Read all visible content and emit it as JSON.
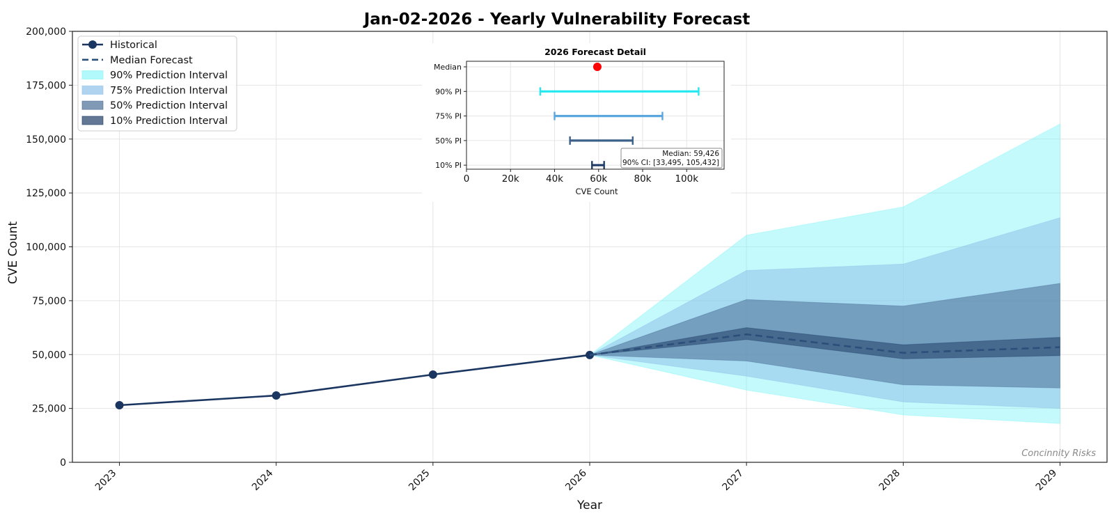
{
  "chart_data": {
    "type": "line",
    "title": "Jan-02-2026 - Yearly Vulnerability Forecast",
    "xlabel": "Year",
    "ylabel": "CVE Count",
    "ylim": [
      0,
      200000
    ],
    "xlim": [
      2022.7,
      2029.3
    ],
    "x": [
      "2023",
      "2024",
      "2025",
      "2026",
      "2027",
      "2028",
      "2029"
    ],
    "y_ticks": [
      "0",
      "25,000",
      "50,000",
      "75,000",
      "100,000",
      "125,000",
      "150,000",
      "175,000",
      "200,000"
    ],
    "grid": true,
    "legend_position": "top-left",
    "watermark": "Concinnity Risks",
    "series": [
      {
        "name": "Historical",
        "kind": "line-marker",
        "color": "#1a3560",
        "x": [
          2023,
          2024,
          2025,
          2026
        ],
        "y": [
          26500,
          31000,
          40700,
          49800
        ]
      },
      {
        "name": "Median Forecast",
        "kind": "dashed-line",
        "color": "#2b4f7a",
        "x": [
          2026,
          2027,
          2028,
          2029
        ],
        "y": [
          49800,
          59400,
          50800,
          53400
        ]
      }
    ],
    "intervals": [
      {
        "name": "90% Prediction Interval",
        "color": "#7df5f8",
        "opacity": 0.45,
        "x": [
          2026,
          2027,
          2028,
          2029
        ],
        "lower": [
          49800,
          33500,
          22000,
          18000
        ],
        "upper": [
          49800,
          105400,
          118500,
          157000
        ]
      },
      {
        "name": "75% Prediction Interval",
        "color": "#8ec1e8",
        "opacity": 0.55,
        "x": [
          2026,
          2027,
          2028,
          2029
        ],
        "lower": [
          49800,
          40000,
          28000,
          25000
        ],
        "upper": [
          49800,
          89000,
          92000,
          113500
        ]
      },
      {
        "name": "50% Prediction Interval",
        "color": "#4a6d96",
        "opacity": 0.55,
        "x": [
          2026,
          2027,
          2028,
          2029
        ],
        "lower": [
          49800,
          47000,
          36000,
          34500
        ],
        "upper": [
          49800,
          75500,
          72500,
          83000
        ]
      },
      {
        "name": "10% Prediction Interval",
        "color": "#1f3e66",
        "opacity": 0.55,
        "x": [
          2026,
          2027,
          2028,
          2029
        ],
        "lower": [
          49800,
          57000,
          48000,
          49500
        ],
        "upper": [
          49800,
          62500,
          54500,
          58000
        ]
      }
    ],
    "inset": {
      "title": "2026 Forecast Detail",
      "xlabel": "CVE Count",
      "xlim": [
        0,
        117000
      ],
      "x_ticks": [
        {
          "value": 0,
          "label": "0"
        },
        {
          "value": 20000,
          "label": "20k"
        },
        {
          "value": 40000,
          "label": "40k"
        },
        {
          "value": 60000,
          "label": "60k"
        },
        {
          "value": 80000,
          "label": "80k"
        },
        {
          "value": 100000,
          "label": "100k"
        }
      ],
      "rows": [
        "Median",
        "90% PI",
        "75% PI",
        "50% PI",
        "10% PI"
      ],
      "median": {
        "value": 59426,
        "color": "#ff0000"
      },
      "bars": [
        {
          "label": "90% PI",
          "low": 33495,
          "high": 105432,
          "color": "#22e8f0"
        },
        {
          "label": "75% PI",
          "low": 40000,
          "high": 89000,
          "color": "#5aa7e0"
        },
        {
          "label": "50% PI",
          "low": 47000,
          "high": 75500,
          "color": "#3b6189"
        },
        {
          "label": "10% PI",
          "low": 57000,
          "high": 62500,
          "color": "#1e3c66"
        }
      ],
      "annotation": [
        "Median: 59,426",
        "90% CI: [33,495, 105,432]"
      ]
    }
  }
}
